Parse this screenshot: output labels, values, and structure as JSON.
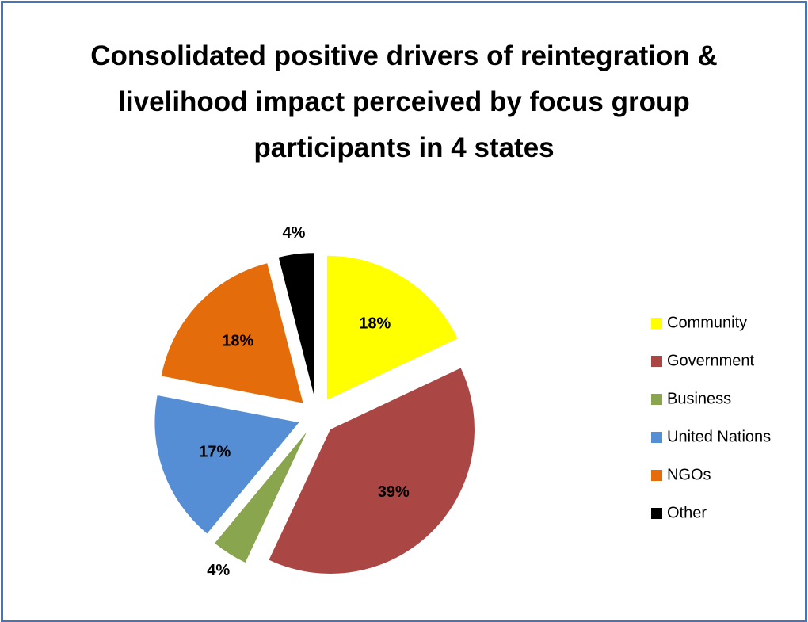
{
  "chart_data": {
    "type": "pie",
    "title": "Consolidated positive drivers of reintegration & livelihood impact perceived by focus group participants in 4 states",
    "categories": [
      "Community",
      "Government",
      "Business",
      "United Nations",
      "NGOs",
      "Other"
    ],
    "values": [
      18,
      39,
      4,
      17,
      18,
      4
    ],
    "value_labels": [
      "18%",
      "39%",
      "4%",
      "17%",
      "18%",
      "4%"
    ],
    "colors": [
      "#ffff00",
      "#aa4643",
      "#89a54e",
      "#558ed5",
      "#e46c0a",
      "#000000"
    ],
    "legend": "right"
  }
}
